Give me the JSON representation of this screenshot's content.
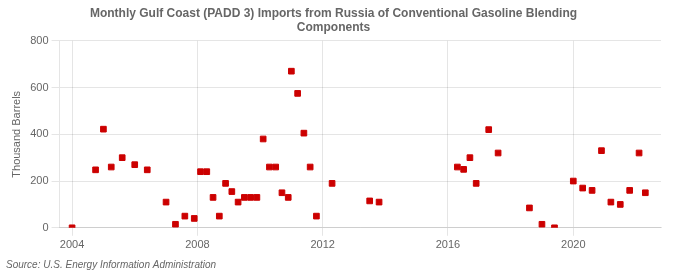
{
  "chart_data": {
    "type": "scatter",
    "title": "Monthly Gulf Coast (PADD 3) Imports from Russia of Conventional Gasoline Blending\nComponents",
    "ylabel": "Thousand Barrels",
    "annotations": [
      "Source: U.S. Energy Information Administration"
    ],
    "x": [
      2004.0,
      2004.75,
      2005.0,
      2005.25,
      2005.6,
      2006.0,
      2006.4,
      2007.0,
      2007.3,
      2007.6,
      2007.9,
      2008.1,
      2008.3,
      2008.5,
      2008.7,
      2008.9,
      2009.1,
      2009.3,
      2009.5,
      2009.7,
      2009.9,
      2010.1,
      2010.3,
      2010.5,
      2010.7,
      2010.9,
      2011.0,
      2011.2,
      2011.4,
      2011.6,
      2011.8,
      2012.3,
      2013.5,
      2013.8,
      2016.3,
      2016.5,
      2016.7,
      2016.9,
      2017.3,
      2017.6,
      2018.6,
      2019.0,
      2019.4,
      2020.0,
      2020.3,
      2020.6,
      2020.9,
      2021.2,
      2021.5,
      2021.8,
      2022.1,
      2022.3
    ],
    "values": [
      0,
      248,
      422,
      260,
      300,
      270,
      248,
      110,
      15,
      50,
      40,
      240,
      240,
      130,
      50,
      190,
      155,
      110,
      130,
      130,
      130,
      380,
      260,
      260,
      150,
      130,
      670,
      575,
      405,
      260,
      50,
      190,
      115,
      110,
      260,
      250,
      300,
      190,
      420,
      320,
      85,
      15,
      0,
      200,
      170,
      160,
      330,
      110,
      100,
      160,
      320,
      150
    ],
    "color": "#cc0000",
    "marker": "square",
    "xlim": [
      2003.6,
      2022.8
    ],
    "xticks": [
      2004,
      2008,
      2012,
      2016,
      2020
    ],
    "ylim": [
      0,
      800
    ],
    "yticks": [
      0,
      200,
      400,
      600,
      800
    ],
    "grid": true
  }
}
